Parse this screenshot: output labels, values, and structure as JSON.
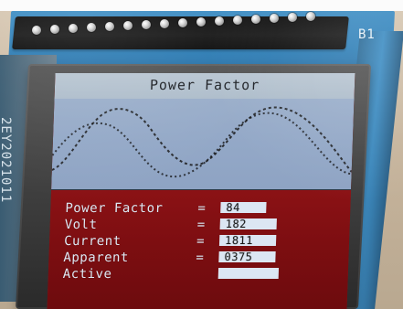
{
  "board": {
    "corner_label": "B1",
    "silk_text": "2EY2021011"
  },
  "screen": {
    "title": "Power Factor",
    "rows": [
      {
        "label": "Power Factor",
        "eq": "=",
        "value": "84"
      },
      {
        "label": "Volt",
        "eq": "=",
        "value": "182"
      },
      {
        "label": "Current",
        "eq": "=",
        "value": "1811"
      },
      {
        "label": "Apparent",
        "eq": "=",
        "value": "0375"
      },
      {
        "label": "Active",
        "eq": "",
        "value": ""
      }
    ]
  },
  "colors": {
    "screen_red": "#7e0f12",
    "wave_blue": "#93a8c7",
    "value_box": "#dce6f3",
    "board_blue": "#2f7fb7"
  }
}
